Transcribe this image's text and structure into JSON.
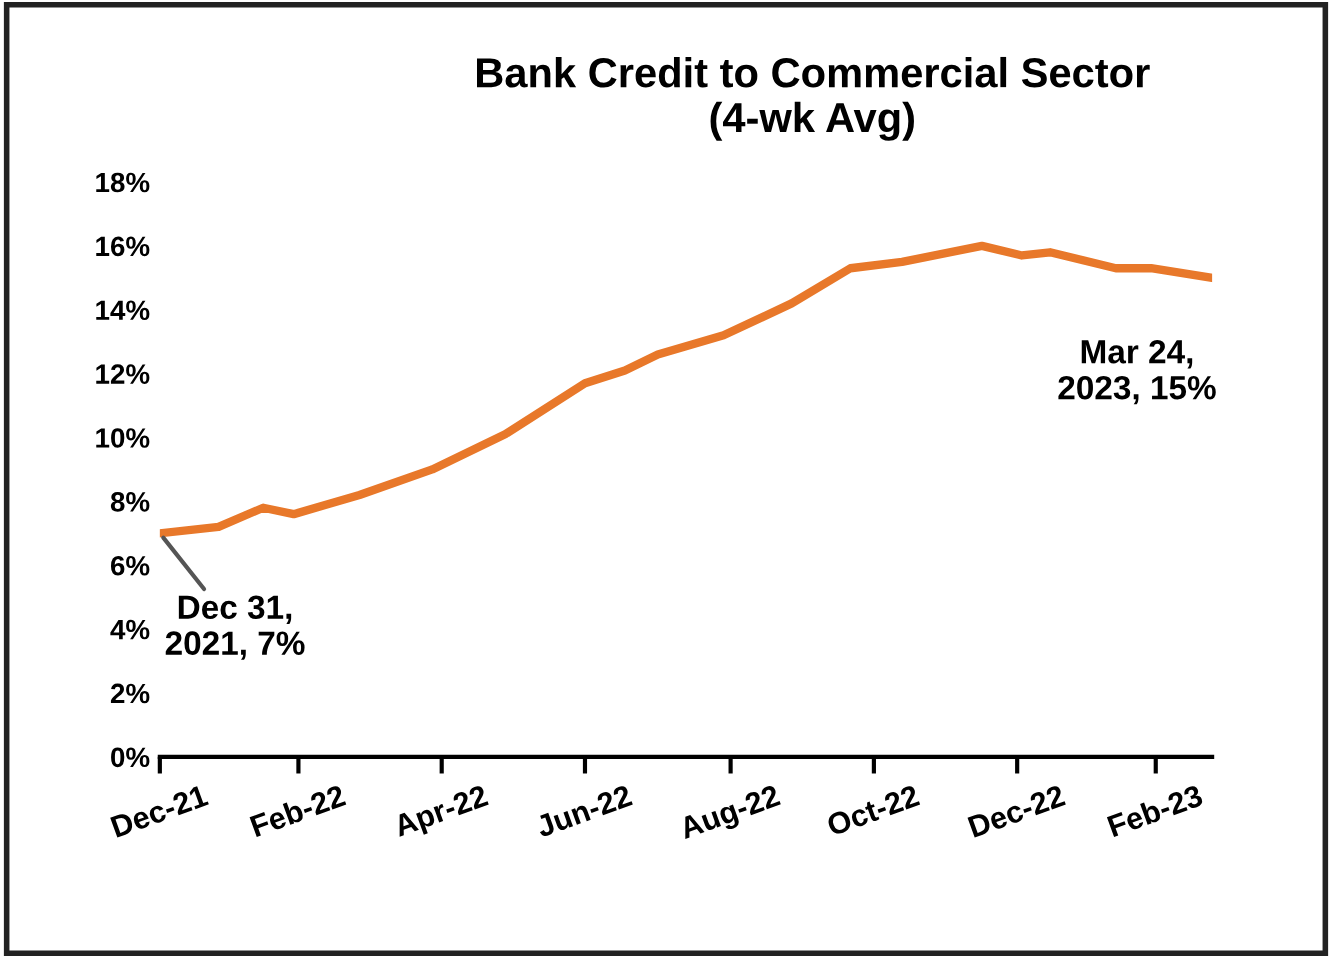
{
  "chart_data": {
    "type": "line",
    "title": "Bank Credit to Commercial Sector\n(4-wk Avg)",
    "x": [
      "2021-12-31",
      "2022-01-25",
      "2022-02-13",
      "2022-02-26",
      "2022-03-26",
      "2022-04-26",
      "2022-05-27",
      "2022-06-30",
      "2022-07-17",
      "2022-07-31",
      "2022-08-28",
      "2022-09-26",
      "2022-10-21",
      "2022-11-12",
      "2022-12-16",
      "2023-01-02",
      "2023-01-14",
      "2023-02-11",
      "2023-02-26",
      "2023-03-24"
    ],
    "series": [
      {
        "color": "#e8782a",
        "values": [
          7,
          7.2,
          7.8,
          7.6,
          8.2,
          9.0,
          10.1,
          11.7,
          12.1,
          12.6,
          13.2,
          14.2,
          15.3,
          15.5,
          16.0,
          15.7,
          15.8,
          15.3,
          15.3,
          15
        ]
      }
    ],
    "xlim": [
      "2021-12-31",
      "2023-03-24"
    ],
    "xticks": [
      {
        "value": "2021-12-31",
        "label": "Dec-21"
      },
      {
        "value": "2022-02-28",
        "label": "Feb-22"
      },
      {
        "value": "2022-04-30",
        "label": "Apr-22"
      },
      {
        "value": "2022-06-30",
        "label": "Jun-22"
      },
      {
        "value": "2022-08-31",
        "label": "Aug-22"
      },
      {
        "value": "2022-10-31",
        "label": "Oct-22"
      },
      {
        "value": "2022-12-31",
        "label": "Dec-22"
      },
      {
        "value": "2023-02-28",
        "label": "Feb-23"
      }
    ],
    "ylim": [
      0,
      18
    ],
    "yticks": [
      {
        "value": 0,
        "label": "0%"
      },
      {
        "value": 2,
        "label": "2%"
      },
      {
        "value": 4,
        "label": "4%"
      },
      {
        "value": 6,
        "label": "6%"
      },
      {
        "value": 8,
        "label": "8%"
      },
      {
        "value": 10,
        "label": "10%"
      },
      {
        "value": 12,
        "label": "12%"
      },
      {
        "value": 14,
        "label": "14%"
      },
      {
        "value": 16,
        "label": "16%"
      },
      {
        "value": 18,
        "label": "18%"
      }
    ],
    "annotations": [
      {
        "text": "Dec 31,\n2021, 7%",
        "x": "2021-12-31",
        "y": 7
      },
      {
        "text": "Mar 24,\n2023, 15%",
        "x": "2023-03-24",
        "y": 15
      }
    ],
    "grid": false,
    "legend": false,
    "marker": "none",
    "line_style": "solid"
  }
}
